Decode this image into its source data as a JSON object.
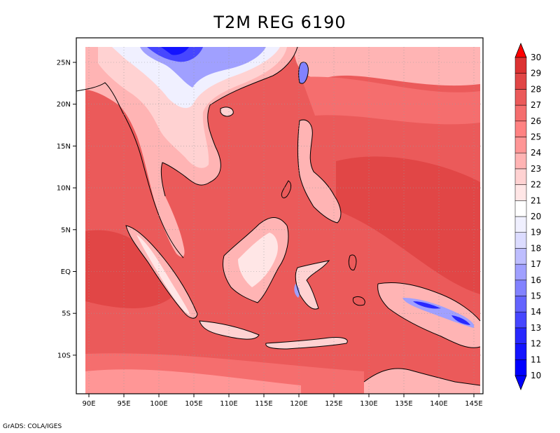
{
  "map": {
    "title": "T2M REG 6190",
    "credit": "GrADS: COLA/IGES",
    "lon_labels": [
      "90E",
      "95E",
      "100E",
      "105E",
      "110E",
      "115E",
      "120E",
      "125E",
      "130E",
      "135E",
      "140E",
      "145E"
    ],
    "lat_labels": [
      "25N",
      "20N",
      "15N",
      "10N",
      "5N",
      "EQ",
      "5S",
      "10S"
    ],
    "colorbar": {
      "levels": [
        "10",
        "11",
        "12",
        "13",
        "14",
        "15",
        "16",
        "17",
        "18",
        "19",
        "20",
        "21",
        "22",
        "23",
        "24",
        "25",
        "26",
        "27",
        "28",
        "29",
        "30"
      ],
      "colors": [
        "#0000ff",
        "#1414ff",
        "#2828ff",
        "#4646ff",
        "#6464ff",
        "#8282ff",
        "#a0a0ff",
        "#bebeff",
        "#dcdcff",
        "#f0f0ff",
        "#ffffff",
        "#ffe6e6",
        "#ffd2d2",
        "#ffb4b4",
        "#ff9696",
        "#ff8282",
        "#f56e6e",
        "#eb5a5a",
        "#e14646",
        "#dc3232"
      ],
      "min_color": "#0000ff",
      "max_color": "#ff0000"
    }
  }
}
